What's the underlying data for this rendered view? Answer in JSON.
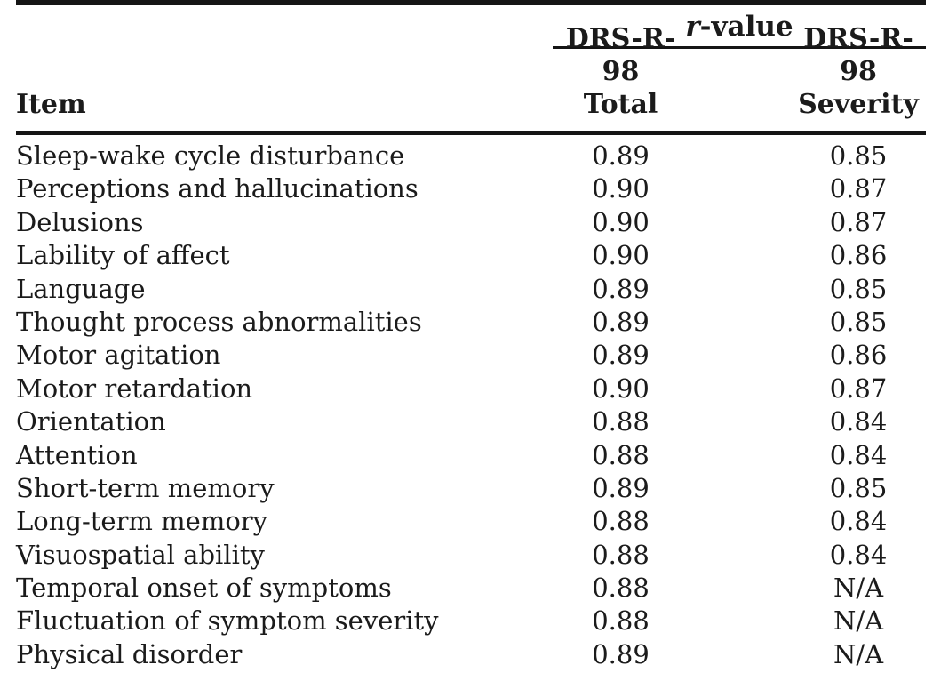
{
  "table": {
    "spanner": {
      "italic_part": "r",
      "rest_part": "-value"
    },
    "columns": {
      "item_label": "Item",
      "total_line1": "DRS-R-98",
      "total_line2": "Total",
      "severity_line1": "DRS-R-98",
      "severity_line2": "Severity"
    },
    "rows": [
      {
        "item": "Sleep-wake cycle disturbance",
        "total": "0.89",
        "severity": "0.85"
      },
      {
        "item": "Perceptions and hallucinations",
        "total": "0.90",
        "severity": "0.87"
      },
      {
        "item": "Delusions",
        "total": "0.90",
        "severity": "0.87"
      },
      {
        "item": "Lability of affect",
        "total": "0.90",
        "severity": "0.86"
      },
      {
        "item": "Language",
        "total": "0.89",
        "severity": "0.85"
      },
      {
        "item": "Thought process abnormalities",
        "total": "0.89",
        "severity": "0.85"
      },
      {
        "item": "Motor agitation",
        "total": "0.89",
        "severity": "0.86"
      },
      {
        "item": "Motor retardation",
        "total": "0.90",
        "severity": "0.87"
      },
      {
        "item": "Orientation",
        "total": "0.88",
        "severity": "0.84"
      },
      {
        "item": "Attention",
        "total": "0.88",
        "severity": "0.84"
      },
      {
        "item": "Short-term memory",
        "total": "0.89",
        "severity": "0.85"
      },
      {
        "item": "Long-term memory",
        "total": "0.88",
        "severity": "0.84"
      },
      {
        "item": "Visuospatial ability",
        "total": "0.88",
        "severity": "0.84"
      },
      {
        "item": "Temporal onset of symptoms",
        "total": "0.88",
        "severity": "N/A"
      },
      {
        "item": "Fluctuation of symptom severity",
        "total": "0.88",
        "severity": "N/A"
      },
      {
        "item": "Physical disorder",
        "total": "0.89",
        "severity": "N/A"
      }
    ]
  },
  "colors": {
    "text": "#1b1b1b",
    "rule": "#151515",
    "background": "#ffffff"
  }
}
